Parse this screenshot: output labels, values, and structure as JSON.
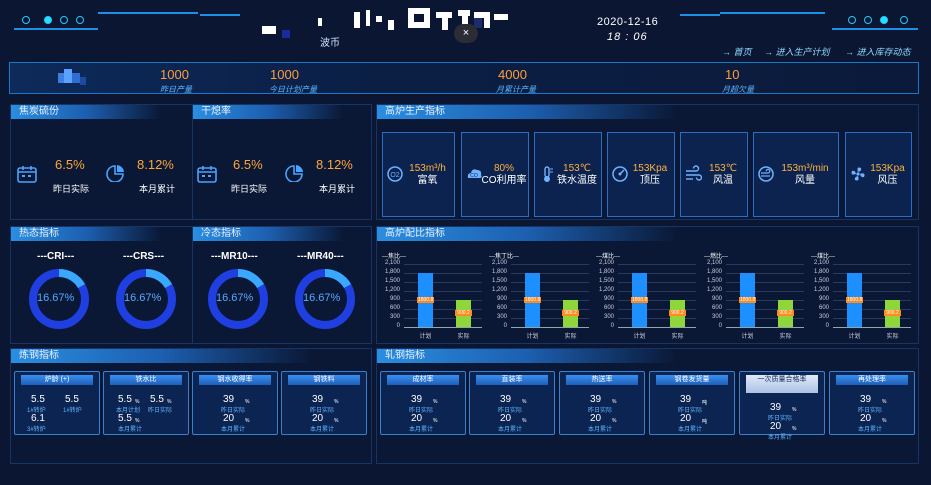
{
  "header": {
    "title_fragment": "波币",
    "date": "2020-12-16",
    "time": "18 : 06",
    "close_glyph": "×",
    "nav": [
      "→ 首页",
      "→ 进入生产计划",
      "→ 进入库存动态"
    ]
  },
  "summary": [
    {
      "value": "1000",
      "label": "昨日产量"
    },
    {
      "value": "1000",
      "label": "今日计划产量"
    },
    {
      "value": "4000",
      "label": "月累计产量"
    },
    {
      "value": "10",
      "label": "月超欠量"
    }
  ],
  "coke_sulfur": {
    "title": "焦炭硫份",
    "daily_value": "6.5%",
    "daily_label": "昨日实际",
    "monthly_value": "8.12%",
    "monthly_label": "本月累计"
  },
  "dry_quench": {
    "title": "干熄率",
    "daily_value": "6.5%",
    "daily_label": "昨日实际",
    "monthly_value": "8.12%",
    "monthly_label": "本月累计"
  },
  "blast_furnace": {
    "title": "高炉生产指标",
    "items": [
      {
        "icon": "oxygen-icon",
        "value": "153m³/h",
        "label": "富氧"
      },
      {
        "icon": "co-icon",
        "value": "80%",
        "label": "CO利用率"
      },
      {
        "icon": "thermometer-icon",
        "value": "153℃",
        "label": "铁水温度"
      },
      {
        "icon": "gauge-icon",
        "value": "153Kpa",
        "label": "顶压"
      },
      {
        "icon": "wind-icon",
        "value": "153℃",
        "label": "风温"
      },
      {
        "icon": "air-volume-icon",
        "value": "153m³/min",
        "label": "风量"
      },
      {
        "icon": "fan-icon",
        "value": "153Kpa",
        "label": "风压"
      }
    ]
  },
  "hot_state": {
    "title": "热态指标",
    "items": [
      {
        "label": "---CRI---",
        "value": "16.67%",
        "fraction": 0.1667
      },
      {
        "label": "---CRS---",
        "value": "16.67%",
        "fraction": 0.1667
      }
    ]
  },
  "cold_state": {
    "title": "冷态指标",
    "items": [
      {
        "label": "---MR10---",
        "value": "16.67%",
        "fraction": 0.1667
      },
      {
        "label": "---MR40---",
        "value": "16.67%",
        "fraction": 0.1667
      }
    ]
  },
  "chart_data": {
    "type": "bar",
    "title": "高炉配比指标",
    "categories": [
      "计划",
      "实际"
    ],
    "y_ticks": [
      "2,100",
      "1,800",
      "1,500",
      "1,200",
      "900",
      "600",
      "300",
      "0"
    ],
    "ylim": [
      0,
      2100
    ],
    "colors": {
      "plan": "#1e8fff",
      "actual": "#8fd63a",
      "label_bg": "#ff8a1e"
    },
    "charts": [
      {
        "name": "---焦比---",
        "values": [
          1800.8,
          900.2
        ],
        "labels": [
          "1800.8",
          "900.2"
        ]
      },
      {
        "name": "---焦丁比---",
        "values": [
          1800.8,
          900.2
        ],
        "labels": [
          "1800.8",
          "900.2"
        ]
      },
      {
        "name": "---煤比---",
        "values": [
          1800.8,
          900.2
        ],
        "labels": [
          "1800.8",
          "900.2"
        ]
      },
      {
        "name": "---燃比---",
        "values": [
          1800.8,
          900.2
        ],
        "labels": [
          "1800.8",
          "900.2"
        ]
      },
      {
        "name": "---煤比---",
        "values": [
          1800.8,
          900.2
        ],
        "labels": [
          "1800.8",
          "900.2"
        ]
      }
    ]
  },
  "steelmaking": {
    "title": "炼钢指标",
    "cards": [
      {
        "head": "炉龄 (+)",
        "rows": [
          [
            "5.5",
            "1#转炉"
          ],
          [
            "5.5",
            "1#转炉"
          ],
          [
            "6.1",
            "3#转炉"
          ]
        ]
      },
      {
        "head": "铁水比",
        "rows": [
          [
            "5.5",
            "本月计划"
          ],
          [
            "5.5",
            "昨日实际"
          ],
          [
            "5.5",
            "本月累计"
          ]
        ],
        "unit": "%"
      },
      {
        "head": "钢水收得率",
        "rows": [
          [
            "39",
            "昨日实际"
          ],
          [
            "20",
            "本月累计"
          ]
        ],
        "unit": "%"
      },
      {
        "head": "钢铁料",
        "rows": [
          [
            "39",
            "昨日实际"
          ],
          [
            "20",
            "本月累计"
          ]
        ],
        "unit": "%"
      }
    ]
  },
  "rolling": {
    "title": "轧钢指标",
    "cards": [
      {
        "head": "成材率",
        "rows": [
          [
            "39",
            "昨日实际"
          ],
          [
            "20",
            "本月累计"
          ]
        ],
        "unit": "%"
      },
      {
        "head": "直装率",
        "rows": [
          [
            "39",
            "昨日实际"
          ],
          [
            "20",
            "本月累计"
          ]
        ],
        "unit": "%"
      },
      {
        "head": "热送率",
        "rows": [
          [
            "39",
            "昨日实际"
          ],
          [
            "20",
            "本月累计"
          ]
        ],
        "unit": "%"
      },
      {
        "head": "钢卷发货量",
        "rows": [
          [
            "39",
            "昨日实际"
          ],
          [
            "20",
            "本月累计"
          ]
        ],
        "unit": "吨"
      },
      {
        "head": "一次质量合格率",
        "rows": [
          [
            "39",
            "昨日实际"
          ],
          [
            "20",
            "本月累计"
          ]
        ],
        "unit": "%"
      },
      {
        "head": "再处理率",
        "rows": [
          [
            "39",
            "昨日实际"
          ],
          [
            "20",
            "本月累计"
          ]
        ],
        "unit": "%"
      }
    ]
  }
}
